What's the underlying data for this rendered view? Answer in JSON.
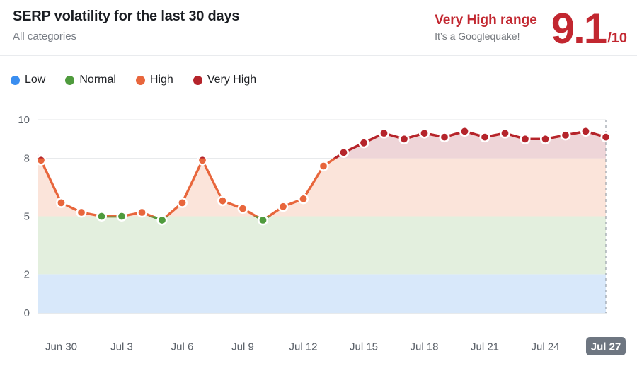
{
  "header": {
    "title": "SERP volatility for the last 30 days",
    "subtitle": "All categories",
    "range_label": "Very High range",
    "range_caption": "It’s a Googlequake!",
    "score": "9.1",
    "score_suffix": "/10"
  },
  "legend": [
    {
      "label": "Low",
      "color": "#3a8ef0"
    },
    {
      "label": "Normal",
      "color": "#4f9b3d"
    },
    {
      "label": "High",
      "color": "#e8663c"
    },
    {
      "label": "Very High",
      "color": "#b5242b"
    }
  ],
  "colors": {
    "accent_red": "#c22730",
    "caption_gray": "#75797e",
    "line_orange": "#e8663c",
    "line_red": "#b5242b",
    "line_green": "#4f9b3d",
    "band_low": "#d8e8fa",
    "band_normal": "#e3efde",
    "band_high": "#fbe4da",
    "band_very_high": "#eed5d8",
    "grid": "#e5e7ea",
    "axis_line": "#cfd4d9",
    "axis_text": "#5b6169",
    "badge_bg": "#6e7681",
    "badge_text": "#ffffff",
    "dashed_line": "#9aa1a9"
  },
  "chart_data": {
    "type": "line",
    "title": "SERP volatility for the last 30 days",
    "x": [
      "Jun 29",
      "Jun 30",
      "Jul 1",
      "Jul 2",
      "Jul 3",
      "Jul 4",
      "Jul 5",
      "Jul 6",
      "Jul 7",
      "Jul 8",
      "Jul 9",
      "Jul 10",
      "Jul 11",
      "Jul 12",
      "Jul 13",
      "Jul 14",
      "Jul 15",
      "Jul 16",
      "Jul 17",
      "Jul 18",
      "Jul 19",
      "Jul 20",
      "Jul 21",
      "Jul 22",
      "Jul 23",
      "Jul 24",
      "Jul 25",
      "Jul 26",
      "Jul 27"
    ],
    "values": [
      7.9,
      5.7,
      5.2,
      5.0,
      5.0,
      5.2,
      4.8,
      5.7,
      7.9,
      5.8,
      5.4,
      4.8,
      5.5,
      5.9,
      7.6,
      8.3,
      8.8,
      9.3,
      9.0,
      9.3,
      9.1,
      9.4,
      9.1,
      9.3,
      9.0,
      9.0,
      9.2,
      9.4,
      9.1
    ],
    "x_tick_labels": [
      "Jun 30",
      "Jul 3",
      "Jul 6",
      "Jul 9",
      "Jul 12",
      "Jul 15",
      "Jul 18",
      "Jul 21",
      "Jul 24",
      "Jul 27"
    ],
    "x_tick_indices": [
      1,
      4,
      7,
      10,
      13,
      16,
      19,
      22,
      25,
      28
    ],
    "highlighted_tick": "Jul 27",
    "y_ticks": [
      0,
      2,
      5,
      8,
      10
    ],
    "ylim": [
      0,
      10
    ],
    "grid": true,
    "legend_position": "top-left",
    "bands": [
      {
        "name": "Low",
        "range": [
          0,
          2
        ]
      },
      {
        "name": "Normal",
        "range": [
          2,
          5
        ]
      },
      {
        "name": "High",
        "range": [
          5,
          8
        ]
      },
      {
        "name": "Very High",
        "range": [
          8,
          10
        ]
      }
    ],
    "point_color_rule": {
      "normal_max": 5,
      "very_high_min": 8
    }
  }
}
